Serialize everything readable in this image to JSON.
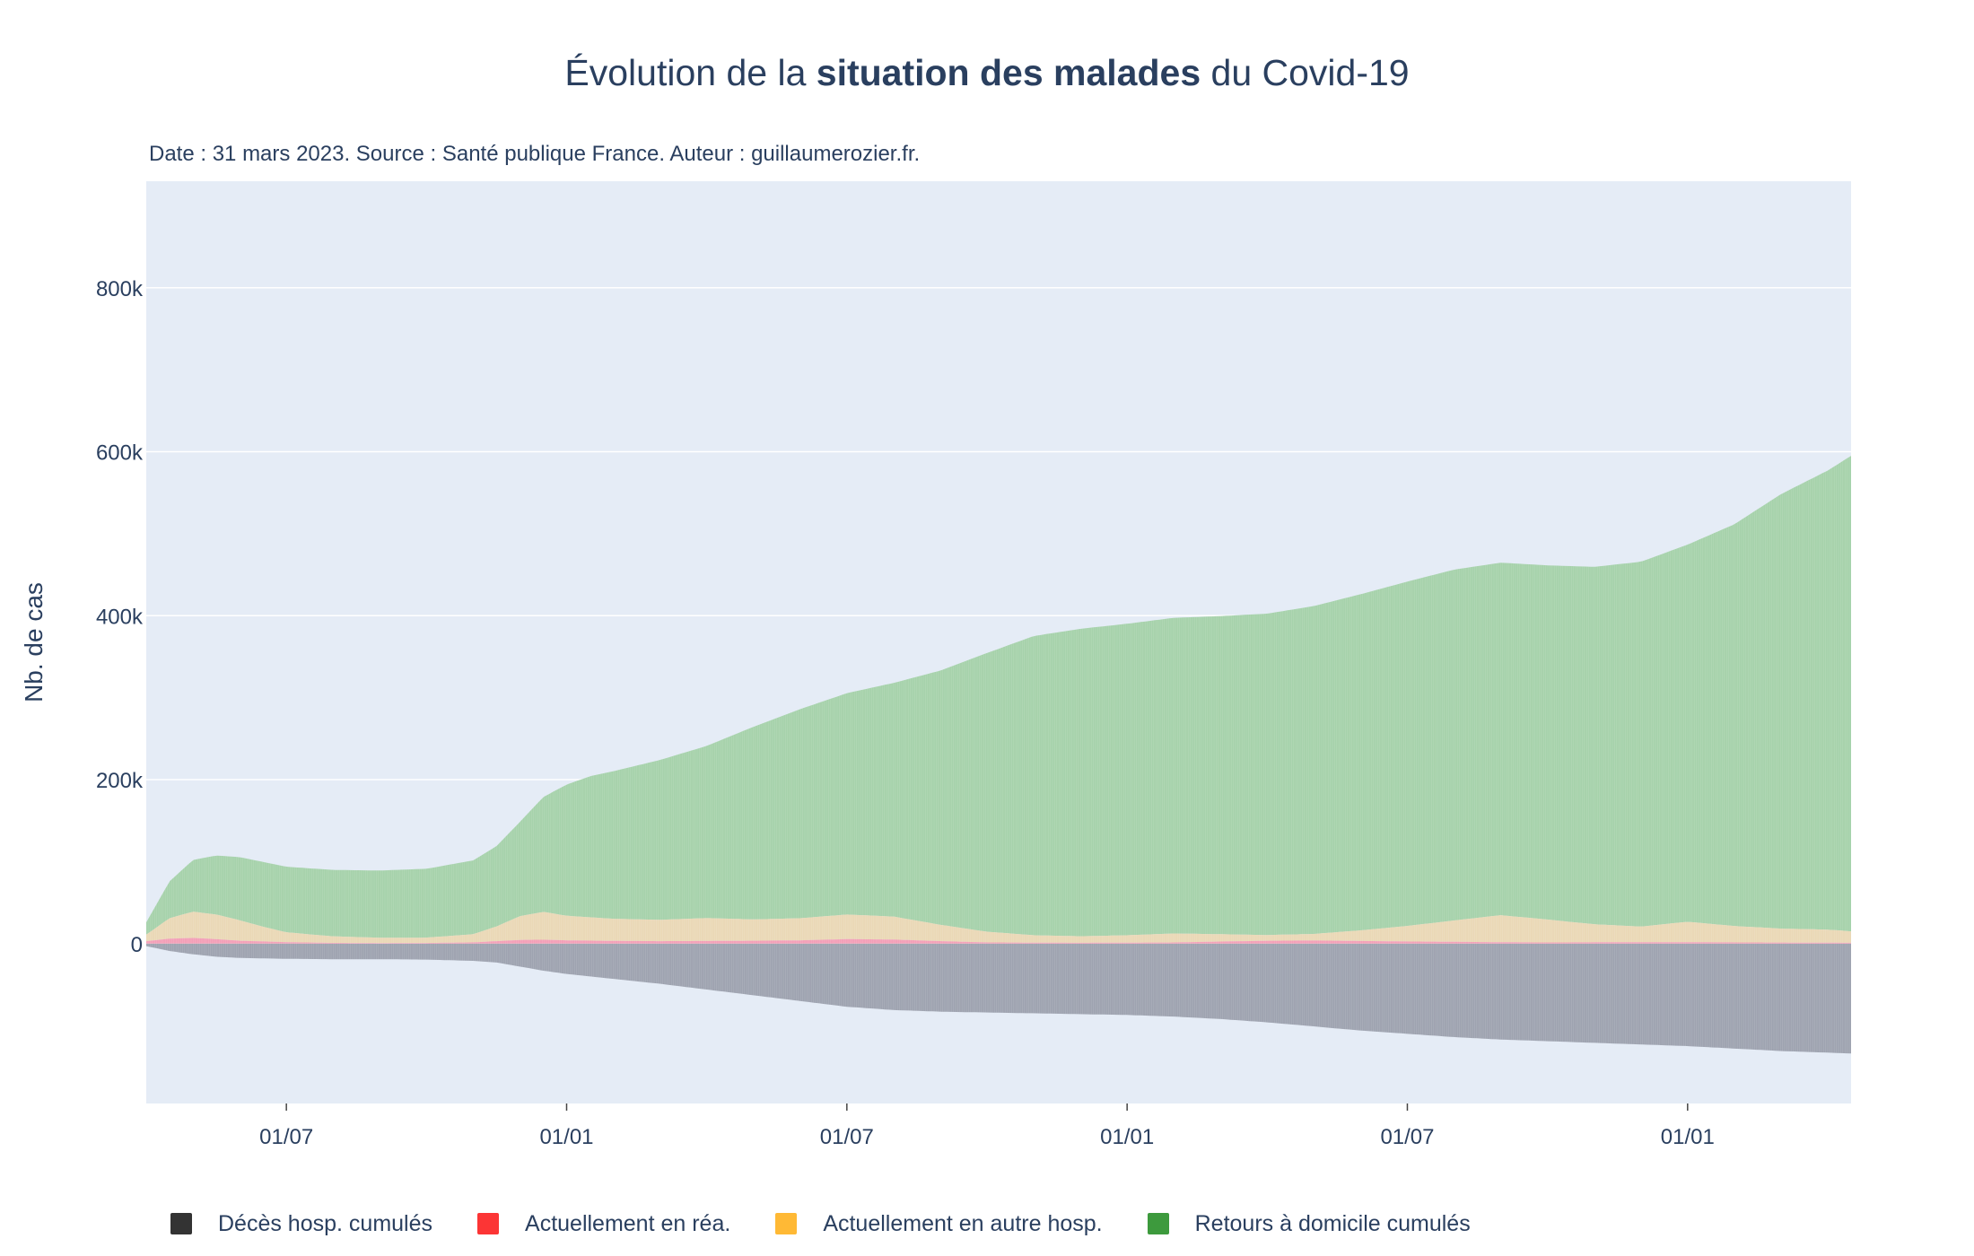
{
  "header": {
    "title_prefix": "Évolution de la ",
    "title_bold": "situation des malades",
    "title_suffix": " du Covid-19",
    "subtitle": "Date : 31 mars 2023. Source : Santé publique France. Auteur : guillaumerozier.fr."
  },
  "chart_data": {
    "type": "bar",
    "title": "Évolution de la situation des malades du Covid-19",
    "ylabel": "Nb. de cas",
    "xlabel": "",
    "ylim": [
      -195000,
      930000
    ],
    "y_ticks": [
      0,
      200000,
      400000,
      600000,
      800000
    ],
    "y_tick_labels": [
      "0",
      "200k",
      "400k",
      "600k",
      "800k"
    ],
    "x_range_months": [
      0,
      36.5
    ],
    "x_ticks_months": [
      3,
      9,
      15,
      21,
      27,
      33
    ],
    "x_tick_labels": [
      "01/07",
      "01/01",
      "01/07",
      "01/01",
      "01/07",
      "01/01"
    ],
    "x_note": "months since 2020-04-01 (start of series, approx. 2020-03-18 to 2023-03-31)",
    "grid": true,
    "colors": {
      "plot_bg": "#e5ecf6",
      "deces": "#9ea3b0",
      "rea": "#f39fb7",
      "hosp": "#ead8b6",
      "rad": "#a6d2ab"
    },
    "series": [
      {
        "name": "Décès hosp. cumulés",
        "color": "#333333",
        "points": [
          [
            -0.4,
            0
          ],
          [
            0,
            -3000
          ],
          [
            0.5,
            -9000
          ],
          [
            1,
            -13000
          ],
          [
            1.5,
            -16000
          ],
          [
            2,
            -17500
          ],
          [
            3,
            -18500
          ],
          [
            4,
            -19000
          ],
          [
            5,
            -19000
          ],
          [
            6,
            -19500
          ],
          [
            7,
            -21000
          ],
          [
            7.5,
            -23000
          ],
          [
            8,
            -28000
          ],
          [
            8.5,
            -33000
          ],
          [
            9,
            -37000
          ],
          [
            10,
            -43000
          ],
          [
            11,
            -49000
          ],
          [
            12,
            -56000
          ],
          [
            13,
            -63000
          ],
          [
            14,
            -70000
          ],
          [
            15,
            -77000
          ],
          [
            16,
            -81000
          ],
          [
            17,
            -83000
          ],
          [
            18,
            -84000
          ],
          [
            19,
            -85000
          ],
          [
            20,
            -86000
          ],
          [
            21,
            -87000
          ],
          [
            22,
            -89000
          ],
          [
            23,
            -92000
          ],
          [
            24,
            -96000
          ],
          [
            25,
            -101000
          ],
          [
            26,
            -106000
          ],
          [
            27,
            -110000
          ],
          [
            28,
            -114000
          ],
          [
            29,
            -117000
          ],
          [
            30,
            -119000
          ],
          [
            31,
            -121000
          ],
          [
            32,
            -123000
          ],
          [
            33,
            -125000
          ],
          [
            34,
            -128000
          ],
          [
            35,
            -131000
          ],
          [
            36,
            -133000
          ],
          [
            36.5,
            -134000
          ]
        ]
      },
      {
        "name": "Actuellement en réa.",
        "color": "#fc3535",
        "points": [
          [
            -0.4,
            0
          ],
          [
            0,
            3000
          ],
          [
            0.5,
            6000
          ],
          [
            1,
            7000
          ],
          [
            1.5,
            5500
          ],
          [
            2,
            3500
          ],
          [
            3,
            1800
          ],
          [
            4,
            900
          ],
          [
            5,
            700
          ],
          [
            6,
            800
          ],
          [
            7,
            1500
          ],
          [
            7.5,
            3000
          ],
          [
            8,
            4500
          ],
          [
            8.5,
            4800
          ],
          [
            9,
            4000
          ],
          [
            10,
            3300
          ],
          [
            11,
            3000
          ],
          [
            12,
            3200
          ],
          [
            13,
            3500
          ],
          [
            14,
            4000
          ],
          [
            15,
            5500
          ],
          [
            16,
            5000
          ],
          [
            17,
            3000
          ],
          [
            18,
            1500
          ],
          [
            19,
            1200
          ],
          [
            20,
            1000
          ],
          [
            21,
            1200
          ],
          [
            22,
            1400
          ],
          [
            23,
            2500
          ],
          [
            24,
            3500
          ],
          [
            25,
            3800
          ],
          [
            26,
            3200
          ],
          [
            27,
            2600
          ],
          [
            28,
            2200
          ],
          [
            29,
            1700
          ],
          [
            30,
            1400
          ],
          [
            31,
            1600
          ],
          [
            32,
            1800
          ],
          [
            33,
            1700
          ],
          [
            34,
            1500
          ],
          [
            35,
            1300
          ],
          [
            36,
            1100
          ],
          [
            36.5,
            1000
          ]
        ]
      },
      {
        "name": "Actuellement en autre hosp.",
        "color": "#ffb935",
        "points": [
          [
            -0.4,
            0
          ],
          [
            0,
            8000
          ],
          [
            0.5,
            25000
          ],
          [
            1,
            32000
          ],
          [
            1.5,
            30000
          ],
          [
            2,
            25000
          ],
          [
            2.5,
            18000
          ],
          [
            3,
            12000
          ],
          [
            4,
            8000
          ],
          [
            5,
            6500
          ],
          [
            6,
            6500
          ],
          [
            7,
            10000
          ],
          [
            7.5,
            18000
          ],
          [
            8,
            29000
          ],
          [
            8.5,
            34000
          ],
          [
            9,
            30000
          ],
          [
            10,
            27000
          ],
          [
            11,
            26000
          ],
          [
            12,
            28000
          ],
          [
            13,
            26000
          ],
          [
            14,
            27000
          ],
          [
            15,
            30000
          ],
          [
            16,
            28000
          ],
          [
            17,
            20000
          ],
          [
            18,
            13000
          ],
          [
            19,
            9000
          ],
          [
            20,
            8000
          ],
          [
            21,
            9000
          ],
          [
            22,
            11000
          ],
          [
            23,
            9000
          ],
          [
            24,
            7000
          ],
          [
            25,
            8000
          ],
          [
            26,
            13000
          ],
          [
            27,
            19000
          ],
          [
            28,
            26000
          ],
          [
            29,
            33000
          ],
          [
            30,
            28000
          ],
          [
            31,
            22000
          ],
          [
            32,
            19000
          ],
          [
            33,
            25000
          ],
          [
            34,
            20000
          ],
          [
            35,
            17000
          ],
          [
            36,
            16000
          ],
          [
            36.5,
            14000
          ]
        ]
      },
      {
        "name": "Retours à domicile cumulés",
        "color": "#3d9a3d",
        "points": [
          [
            -0.4,
            0
          ],
          [
            0,
            15000
          ],
          [
            0.5,
            45000
          ],
          [
            1,
            63000
          ],
          [
            1.5,
            72000
          ],
          [
            2,
            77000
          ],
          [
            2.5,
            79000
          ],
          [
            3,
            80000
          ],
          [
            4,
            81000
          ],
          [
            5,
            82000
          ],
          [
            6,
            84000
          ],
          [
            7,
            90000
          ],
          [
            7.5,
            98000
          ],
          [
            8,
            115000
          ],
          [
            8.5,
            140000
          ],
          [
            9,
            160000
          ],
          [
            9.5,
            172000
          ],
          [
            10,
            180000
          ],
          [
            11,
            195000
          ],
          [
            12,
            210000
          ],
          [
            13,
            235000
          ],
          [
            14,
            255000
          ],
          [
            15,
            270000
          ],
          [
            16,
            285000
          ],
          [
            17,
            310000
          ],
          [
            18,
            340000
          ],
          [
            19,
            365000
          ],
          [
            20,
            375000
          ],
          [
            21,
            380000
          ],
          [
            22,
            385000
          ],
          [
            23,
            388000
          ],
          [
            24,
            392000
          ],
          [
            25,
            400000
          ],
          [
            26,
            410000
          ],
          [
            27,
            420000
          ],
          [
            28,
            428000
          ],
          [
            29,
            430000
          ],
          [
            30,
            432000
          ],
          [
            31,
            436000
          ],
          [
            32,
            445000
          ],
          [
            33,
            460000
          ],
          [
            34,
            490000
          ],
          [
            35,
            530000
          ],
          [
            36,
            560000
          ],
          [
            36.5,
            580000
          ]
        ]
      }
    ]
  },
  "legend": {
    "items": [
      {
        "label": "Décès hosp. cumulés",
        "color": "#333333"
      },
      {
        "label": "Actuellement en réa.",
        "color": "#fc3535"
      },
      {
        "label": "Actuellement en autre hosp.",
        "color": "#ffb935"
      },
      {
        "label": "Retours à domicile cumulés",
        "color": "#3d9a3d"
      }
    ]
  }
}
